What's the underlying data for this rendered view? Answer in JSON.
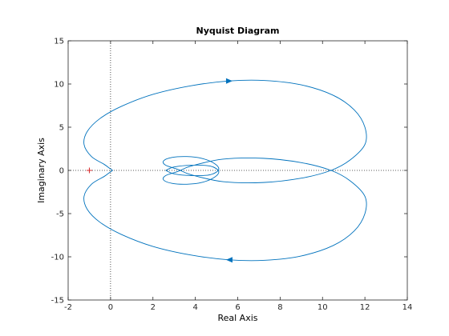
{
  "chart_data": {
    "type": "line",
    "title": "Nyquist Diagram",
    "xlabel": "Real Axis",
    "ylabel": "Imaginary Axis",
    "xlim": [
      -2,
      14
    ],
    "ylim": [
      -15,
      15
    ],
    "x_ticks": [
      -2,
      0,
      2,
      4,
      6,
      8,
      10,
      12,
      14
    ],
    "y_ticks": [
      -15,
      -10,
      -5,
      0,
      5,
      10,
      15
    ],
    "grid": false,
    "reference_lines": {
      "x": 0,
      "y": 0,
      "style": "dotted"
    },
    "critical_point": {
      "x": -1,
      "y": 0,
      "marker": "+",
      "color": "#d62728"
    },
    "series": [
      {
        "color": "#0072bd",
        "upper_branch": [
          [
            0.1,
            0.0
          ],
          [
            -0.05,
            0.25
          ],
          [
            -0.3,
            0.7
          ],
          [
            -0.9,
            1.6
          ],
          [
            -1.25,
            3.0
          ],
          [
            -1.1,
            4.5
          ],
          [
            -0.5,
            6.0
          ],
          [
            0.5,
            7.4
          ],
          [
            2.0,
            8.8
          ],
          [
            3.8,
            9.8
          ],
          [
            5.6,
            10.35
          ],
          [
            7.3,
            10.4
          ],
          [
            9.0,
            9.9
          ],
          [
            10.5,
            8.7
          ],
          [
            11.5,
            7.0
          ],
          [
            12.0,
            5.0
          ],
          [
            12.0,
            3.0
          ],
          [
            11.3,
            1.2
          ],
          [
            10.4,
            0.0
          ],
          [
            9.0,
            -0.9
          ],
          [
            7.2,
            -1.4
          ],
          [
            5.3,
            -1.3
          ],
          [
            3.8,
            -0.5
          ],
          [
            3.2,
            0.1
          ],
          [
            2.6,
            0.6
          ],
          [
            2.5,
            1.1
          ],
          [
            2.9,
            1.5
          ],
          [
            3.6,
            1.6
          ],
          [
            4.3,
            1.4
          ],
          [
            4.9,
            0.8
          ],
          [
            5.1,
            0.1
          ],
          [
            4.7,
            -0.5
          ],
          [
            3.8,
            -0.6
          ],
          [
            3.0,
            -0.4
          ],
          [
            2.6,
            0.0
          ]
        ],
        "arrows": [
          {
            "x": 5.6,
            "y": 10.35,
            "direction": "right"
          },
          {
            "x": 5.6,
            "y": -10.35,
            "direction": "left"
          }
        ]
      }
    ]
  }
}
